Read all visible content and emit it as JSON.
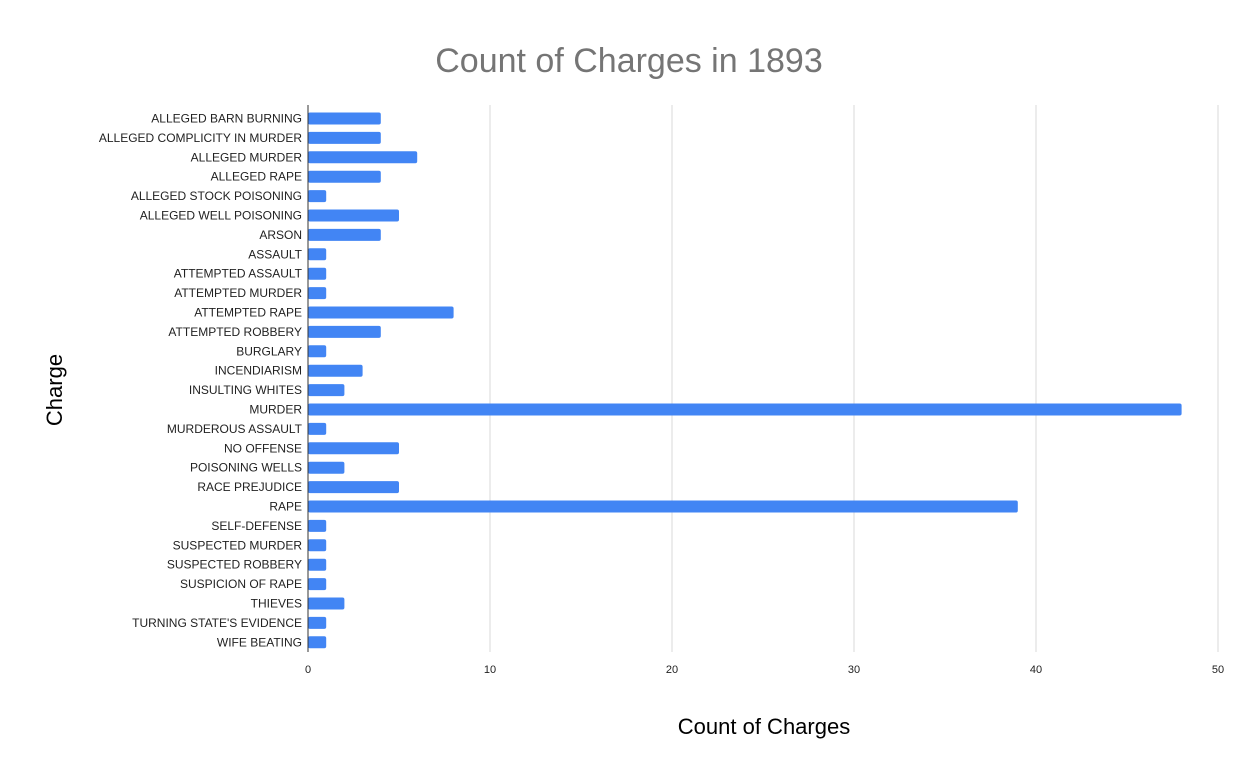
{
  "chart_data": {
    "type": "bar",
    "orientation": "horizontal",
    "title": "Count of Charges in 1893",
    "xlabel": "Count of Charges",
    "ylabel": "Charge",
    "xlim": [
      0,
      50
    ],
    "x_ticks": [
      0,
      10,
      20,
      30,
      40,
      50
    ],
    "grid": true,
    "legend": "none",
    "bar_color": "#4285f4",
    "categories": [
      "ALLEGED BARN BURNING",
      "ALLEGED COMPLICITY IN MURDER",
      "ALLEGED MURDER",
      "ALLEGED RAPE",
      "ALLEGED STOCK POISONING",
      "ALLEGED WELL POISONING",
      "ARSON",
      "ASSAULT",
      "ATTEMPTED ASSAULT",
      "ATTEMPTED MURDER",
      "ATTEMPTED RAPE",
      "ATTEMPTED ROBBERY",
      "BURGLARY",
      "INCENDIARISM",
      "INSULTING WHITES",
      "MURDER",
      "MURDEROUS ASSAULT",
      "NO OFFENSE",
      "POISONING WELLS",
      "RACE PREJUDICE",
      "RAPE",
      "SELF-DEFENSE",
      "SUSPECTED MURDER",
      "SUSPECTED ROBBERY",
      "SUSPICION OF RAPE",
      "THIEVES",
      "TURNING STATE'S EVIDENCE",
      "WIFE BEATING"
    ],
    "values": [
      4,
      4,
      6,
      4,
      1,
      5,
      4,
      1,
      1,
      1,
      8,
      4,
      1,
      3,
      2,
      48,
      1,
      5,
      2,
      5,
      39,
      1,
      1,
      1,
      1,
      2,
      1,
      1
    ]
  }
}
